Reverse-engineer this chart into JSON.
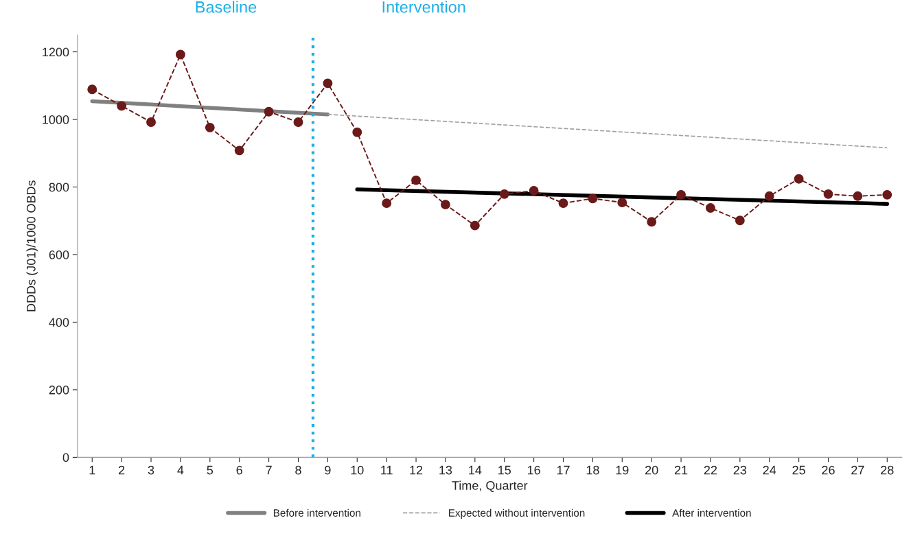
{
  "chart_data": {
    "type": "line",
    "xlabel": "Time, Quarter",
    "ylabel": "DDDs (J01)/1000 OBDs",
    "annotations": [
      "Baseline",
      "Intervention"
    ],
    "xlim": [
      0.5,
      28.5
    ],
    "xticks": [
      1,
      2,
      3,
      4,
      5,
      6,
      7,
      8,
      9,
      10,
      11,
      12,
      13,
      14,
      15,
      16,
      17,
      18,
      19,
      20,
      21,
      22,
      23,
      24,
      25,
      26,
      27,
      28
    ],
    "ylim": [
      0,
      1250
    ],
    "yticks": [
      0,
      200,
      400,
      600,
      800,
      1000,
      1200
    ],
    "grid": false,
    "legend": "bottom",
    "ref_lines": [
      {
        "axis": "x",
        "value": 8.5,
        "color": "#1ab0e8",
        "line_style": "dotted"
      }
    ],
    "series": [
      {
        "color": "#6b1a1a",
        "marker": "circle",
        "line_style": "dashed",
        "x": [
          1,
          2,
          3,
          4,
          5,
          6,
          7,
          8,
          9,
          10,
          11,
          12,
          13,
          14,
          15,
          16,
          17,
          18,
          19,
          20,
          21,
          22,
          23,
          24,
          25,
          26,
          27,
          28
        ],
        "values": [
          1089,
          1040,
          992,
          1192,
          976,
          908,
          1023,
          992,
          1107,
          962,
          752,
          820,
          748,
          686,
          779,
          789,
          752,
          766,
          754,
          697,
          777,
          738,
          701,
          773,
          824,
          779,
          773,
          777
        ]
      },
      {
        "name": "Before intervention",
        "color": "#808080",
        "marker": "none",
        "line_style": "solid",
        "x": [
          1,
          9
        ],
        "values": [
          1054,
          1015
        ]
      },
      {
        "name": "Expected without intervention",
        "color": "#a0a0a0",
        "marker": "none",
        "line_style": "dashed",
        "x": [
          9,
          28
        ],
        "values": [
          1015,
          916
        ]
      },
      {
        "name": "After intervention",
        "color": "#000000",
        "marker": "none",
        "line_style": "solid",
        "x": [
          10,
          28
        ],
        "values": [
          793,
          750
        ]
      }
    ]
  }
}
